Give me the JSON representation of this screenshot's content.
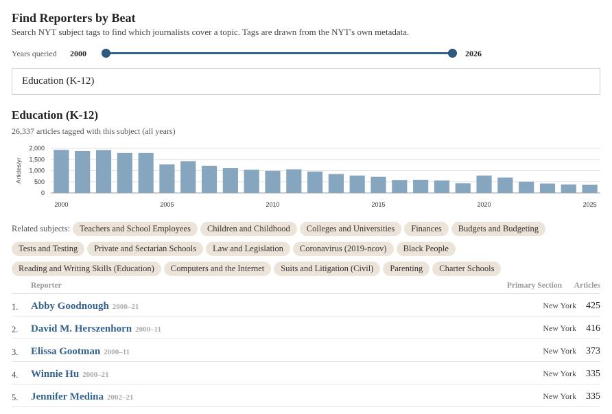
{
  "header": {
    "title": "Find Reporters by Beat",
    "subtitle": "Search NYT subject tags to find which journalists cover a topic. Tags are drawn from the NYT's own metadata."
  },
  "years": {
    "label": "Years queried",
    "start": "2000",
    "end": "2026",
    "range_min": 2000,
    "range_max": 2026
  },
  "search": {
    "value": "Education (K-12)"
  },
  "subject": {
    "title": "Education (K-12)",
    "count_text": "26,337 articles tagged with this subject (all years)"
  },
  "chart_data": {
    "type": "bar",
    "ylabel": "Articles/yr",
    "ylim": [
      0,
      2000
    ],
    "yticks": [
      "0",
      "500",
      "1,000",
      "1,500",
      "2,000"
    ],
    "ytick_values": [
      0,
      500,
      1000,
      1500,
      2000
    ],
    "xticks": [
      "2000",
      "2005",
      "2010",
      "2015",
      "2020",
      "2025"
    ],
    "xtick_values": [
      2000,
      2005,
      2010,
      2015,
      2020,
      2025
    ],
    "x": [
      2000,
      2001,
      2002,
      2003,
      2004,
      2005,
      2006,
      2007,
      2008,
      2009,
      2010,
      2011,
      2012,
      2013,
      2014,
      2015,
      2016,
      2017,
      2018,
      2019,
      2020,
      2021,
      2022,
      2023,
      2024,
      2025
    ],
    "values": [
      1930,
      1880,
      1920,
      1790,
      1790,
      1280,
      1420,
      1210,
      1110,
      1040,
      990,
      1060,
      960,
      850,
      780,
      720,
      580,
      590,
      560,
      430,
      780,
      690,
      500,
      420,
      380,
      370
    ],
    "grid": true,
    "color": "#86a6c0"
  },
  "related": {
    "label": "Related subjects:",
    "items": [
      "Teachers and School Employees",
      "Children and Childhood",
      "Colleges and Universities",
      "Finances",
      "Budgets and Budgeting",
      "Tests and Testing",
      "Private and Sectarian Schools",
      "Law and Legislation",
      "Coronavirus (2019-ncov)",
      "Black People",
      "Reading and Writing Skills (Education)",
      "Computers and the Internet",
      "Suits and Litigation (Civil)",
      "Parenting",
      "Charter Schools"
    ]
  },
  "table": {
    "headers": {
      "reporter": "Reporter",
      "section": "Primary Section",
      "articles": "Articles"
    },
    "rows": [
      {
        "rank": "1.",
        "name": "Abby Goodnough",
        "years": "2000–21",
        "section": "New York",
        "articles": "425"
      },
      {
        "rank": "2.",
        "name": "David M. Herszenhorn",
        "years": "2000–11",
        "section": "New York",
        "articles": "416"
      },
      {
        "rank": "3.",
        "name": "Elissa Gootman",
        "years": "2000–11",
        "section": "New York",
        "articles": "373"
      },
      {
        "rank": "4.",
        "name": "Winnie Hu",
        "years": "2000–21",
        "section": "New York",
        "articles": "335"
      },
      {
        "rank": "5.",
        "name": "Jennifer Medina",
        "years": "2002–21",
        "section": "New York",
        "articles": "335"
      }
    ]
  },
  "colors": {
    "accent": "#34628e",
    "bar": "#86a6c0",
    "pill": "#ece3d9"
  }
}
